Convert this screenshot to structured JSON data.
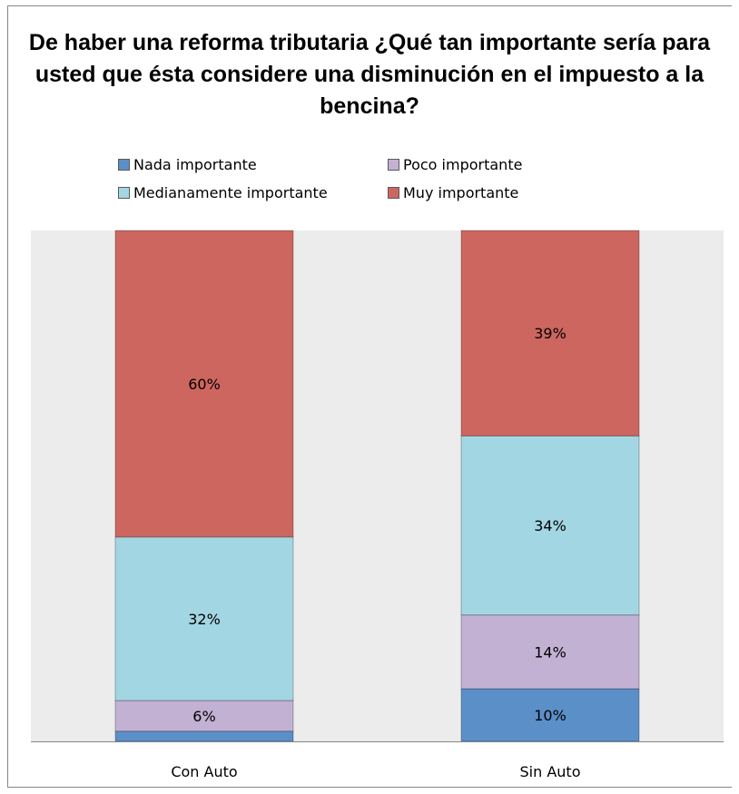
{
  "chart_data": {
    "type": "bar",
    "stacked": true,
    "percent": true,
    "title": "De haber una reforma tributaria ¿Qué tan importante sería para usted que ésta considere una disminución en el impuesto a la bencina?",
    "categories": [
      "Con Auto",
      "Sin Auto"
    ],
    "series": [
      {
        "name": "Nada importante",
        "color": "#5b8fc8",
        "values": [
          2,
          10
        ],
        "labels": [
          "",
          "10%"
        ]
      },
      {
        "name": "Poco importante",
        "color": "#c3b1d4",
        "values": [
          6,
          14
        ],
        "labels": [
          "6%",
          "14%"
        ]
      },
      {
        "name": "Medianamente importante",
        "color": "#a3d6e3",
        "values": [
          32,
          34
        ],
        "labels": [
          "32%",
          "34%"
        ]
      },
      {
        "name": "Muy importante",
        "color": "#cd665f",
        "values": [
          60,
          39
        ],
        "labels": [
          "60%",
          "39%"
        ]
      }
    ],
    "ylim": [
      0,
      100
    ],
    "plot_background": "#ececec",
    "legend_position": "top",
    "grid": false
  }
}
